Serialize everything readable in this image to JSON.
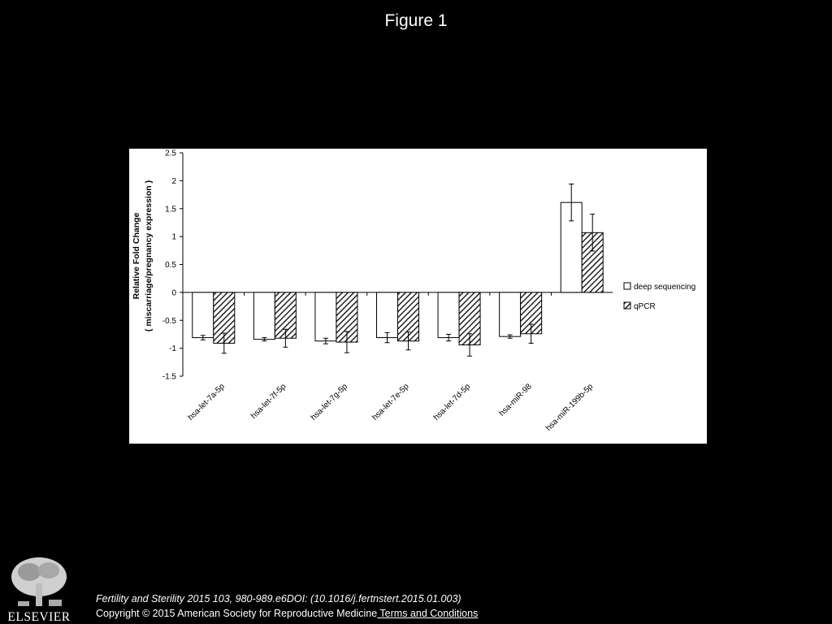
{
  "slide": {
    "title": "Figure 1"
  },
  "chart_data": {
    "type": "bar",
    "title": "",
    "ylabel_line1": "Relative Fold Change",
    "ylabel_line2": "( miscarriage/pregnancy expression )",
    "xlabel": "",
    "ylim": [
      -1.5,
      2.5
    ],
    "yticks": [
      -1.5,
      -1,
      -0.5,
      0,
      0.5,
      1,
      1.5,
      2,
      2.5
    ],
    "ytick_labels": [
      "-1.5",
      "-1",
      "-0.5",
      "0",
      "0.5",
      "1",
      "1.5",
      "2",
      "2.5"
    ],
    "categories": [
      "hsa-let-7a-5p",
      "hsa-let-7f-5p",
      "hsa-let-7g-5p",
      "hsa-let-7e-5p",
      "hsa-let-7d-5p",
      "hsa-miR-98",
      "hsa-miR-199b-5p"
    ],
    "series": [
      {
        "name": "deep sequencing",
        "values": [
          -0.81,
          -0.84,
          -0.87,
          -0.81,
          -0.81,
          -0.79,
          1.61
        ],
        "errors": [
          0.04,
          0.03,
          0.05,
          0.09,
          0.06,
          0.03,
          0.33
        ],
        "fill": "#ffffff"
      },
      {
        "name": "qPCR",
        "values": [
          -0.91,
          -0.82,
          -0.89,
          -0.87,
          -0.94,
          -0.74,
          1.07
        ],
        "errors": [
          0.18,
          0.16,
          0.19,
          0.16,
          0.2,
          0.17,
          0.33
        ],
        "fill": "hatched"
      }
    ],
    "legend_position": "right",
    "grid": false
  },
  "footer": {
    "citation": "Fertility and Sterility 2015 103, 980-989.e6DOI: (10.1016/j.fertnstert.2015.01.003)",
    "copyright": "Copyright © 2015 American Society for Reproductive Medicine",
    "terms_link": " Terms and Conditions",
    "logo_text": "ELSEVIER"
  }
}
